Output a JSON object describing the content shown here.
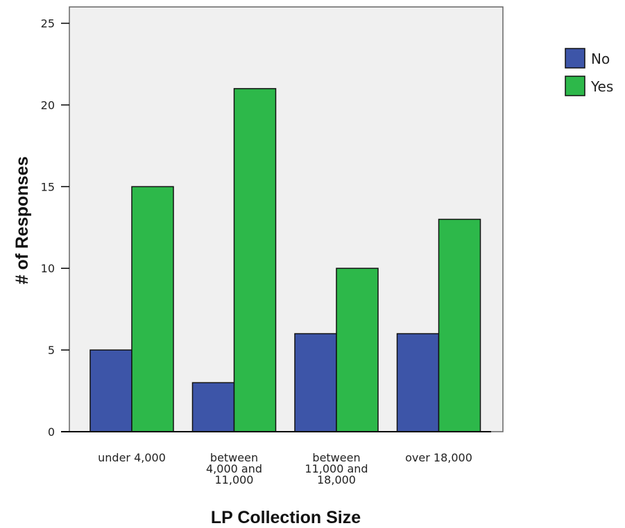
{
  "chart_data": {
    "type": "bar",
    "categories": [
      [
        "under 4,000"
      ],
      [
        "between",
        "4,000 and",
        "11,000"
      ],
      [
        "between",
        "11,000 and",
        "18,000"
      ],
      [
        "over 18,000"
      ]
    ],
    "series": [
      {
        "name": "No",
        "values": [
          5,
          3,
          6,
          6
        ],
        "color": "#3D55A8"
      },
      {
        "name": "Yes",
        "values": [
          15,
          21,
          10,
          13
        ],
        "color": "#2DB84A"
      }
    ],
    "title": "",
    "xlabel": "LP Collection Size",
    "ylabel": "# of Responses",
    "ylim": [
      0,
      26
    ],
    "yticks": [
      0,
      5,
      10,
      15,
      20,
      25
    ],
    "grid": false,
    "legend_position": "top-right",
    "plot_background": "#F0F0F0"
  }
}
